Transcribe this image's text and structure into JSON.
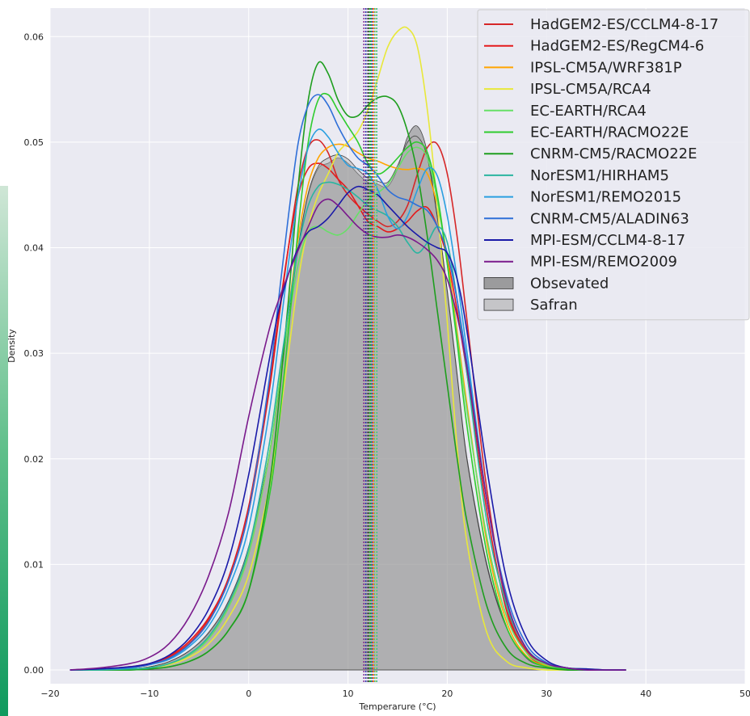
{
  "chart_data": {
    "type": "area",
    "title": "",
    "xlabel": "Temperarure (°C)",
    "ylabel": "Density",
    "xlim": [
      -20,
      50
    ],
    "ylim": [
      -0.0013,
      0.0627
    ],
    "xticks": [
      -20,
      -10,
      0,
      10,
      20,
      30,
      40,
      50
    ],
    "yticks": [
      0.0,
      0.01,
      0.02,
      0.03,
      0.04,
      0.05,
      0.06
    ],
    "grid": true,
    "legend_position": "top-right",
    "plot_background": "#eaeaf2",
    "x": [
      -18,
      -15,
      -12,
      -10,
      -8,
      -6,
      -4,
      -2,
      0,
      2,
      3,
      4,
      5,
      6,
      7,
      8,
      9,
      10,
      11,
      12,
      13,
      14,
      15,
      16,
      17,
      18,
      19,
      20,
      21,
      22,
      24,
      26,
      28,
      30,
      32,
      34,
      36,
      38
    ],
    "filled_series": [
      {
        "name": "Obsevated",
        "color": "#808080",
        "opacity": 0.55,
        "values": [
          0,
          0,
          0.0001,
          0.0003,
          0.0008,
          0.0018,
          0.0035,
          0.0065,
          0.0115,
          0.02,
          0.026,
          0.033,
          0.04,
          0.045,
          0.0475,
          0.048,
          0.0485,
          0.048,
          0.047,
          0.0462,
          0.046,
          0.0458,
          0.0475,
          0.0505,
          0.0515,
          0.049,
          0.043,
          0.036,
          0.028,
          0.02,
          0.01,
          0.004,
          0.0012,
          0.0003,
          0.0001,
          0,
          0,
          0
        ]
      },
      {
        "name": "Safran",
        "color": "#b0b0b0",
        "opacity": 0.45,
        "values": [
          0,
          0,
          0.0001,
          0.0003,
          0.0008,
          0.0018,
          0.0036,
          0.0066,
          0.0117,
          0.0202,
          0.0262,
          0.0332,
          0.0402,
          0.0452,
          0.0477,
          0.0485,
          0.0488,
          0.0484,
          0.0474,
          0.0466,
          0.0463,
          0.0462,
          0.0478,
          0.05,
          0.0505,
          0.0485,
          0.0428,
          0.0358,
          0.0278,
          0.0198,
          0.0098,
          0.0039,
          0.0011,
          0.0003,
          0.0001,
          0,
          0,
          0
        ]
      }
    ],
    "series": [
      {
        "name": "HadGEM2-ES/CCLM4-8-17",
        "color": "#d62728",
        "values": [
          0,
          0.0001,
          0.0002,
          0.0005,
          0.0012,
          0.0025,
          0.0048,
          0.0085,
          0.015,
          0.026,
          0.033,
          0.04,
          0.046,
          0.0495,
          0.0502,
          0.049,
          0.0465,
          0.045,
          0.044,
          0.0432,
          0.0425,
          0.042,
          0.0425,
          0.044,
          0.047,
          0.0495,
          0.0498,
          0.047,
          0.041,
          0.033,
          0.017,
          0.006,
          0.0018,
          0.0005,
          0.0001,
          0,
          0,
          0
        ]
      },
      {
        "name": "HadGEM2-ES/RegCM4-6",
        "color": "#e41a1c",
        "values": [
          0,
          0.0001,
          0.0003,
          0.0006,
          0.0013,
          0.0027,
          0.005,
          0.0088,
          0.0155,
          0.0265,
          0.0335,
          0.04,
          0.045,
          0.0475,
          0.048,
          0.0475,
          0.0465,
          0.0455,
          0.044,
          0.0425,
          0.042,
          0.0415,
          0.0418,
          0.0425,
          0.0435,
          0.0438,
          0.042,
          0.039,
          0.034,
          0.028,
          0.015,
          0.0055,
          0.0016,
          0.0004,
          0.0001,
          0,
          0,
          0
        ]
      },
      {
        "name": "IPSL-CM5A/WRF381P",
        "color": "#ffa500",
        "values": [
          0,
          0,
          0.0001,
          0.0002,
          0.0006,
          0.0014,
          0.003,
          0.006,
          0.011,
          0.02,
          0.0265,
          0.034,
          0.041,
          0.046,
          0.0485,
          0.0495,
          0.0498,
          0.0496,
          0.049,
          0.0485,
          0.0482,
          0.0478,
          0.0475,
          0.0474,
          0.0475,
          0.047,
          0.044,
          0.039,
          0.032,
          0.025,
          0.012,
          0.0045,
          0.0013,
          0.0004,
          0.0001,
          0,
          0,
          0
        ]
      },
      {
        "name": "IPSL-CM5A/RCA4",
        "color": "#e8e83a",
        "values": [
          0,
          0,
          0.0001,
          0.0002,
          0.0005,
          0.0012,
          0.0025,
          0.005,
          0.009,
          0.017,
          0.023,
          0.03,
          0.037,
          0.042,
          0.045,
          0.047,
          0.049,
          0.05,
          0.051,
          0.053,
          0.056,
          0.059,
          0.0605,
          0.0608,
          0.059,
          0.053,
          0.044,
          0.033,
          0.021,
          0.012,
          0.0035,
          0.0008,
          0.0002,
          0,
          0,
          0,
          0,
          0
        ]
      },
      {
        "name": "EC-EARTH/RCA4",
        "color": "#66e066",
        "values": [
          0,
          0,
          0.0001,
          0.0002,
          0.0006,
          0.0014,
          0.003,
          0.006,
          0.011,
          0.02,
          0.0265,
          0.033,
          0.0385,
          0.0415,
          0.042,
          0.0415,
          0.0412,
          0.0418,
          0.0432,
          0.0445,
          0.0452,
          0.046,
          0.0475,
          0.049,
          0.0495,
          0.0485,
          0.0445,
          0.0385,
          0.0315,
          0.0245,
          0.0125,
          0.005,
          0.0016,
          0.0005,
          0.0001,
          0,
          0,
          0
        ]
      },
      {
        "name": "EC-EARTH/RACMO22E",
        "color": "#2ecc2e",
        "values": [
          0,
          0,
          0,
          0.0001,
          0.0003,
          0.0008,
          0.0018,
          0.0038,
          0.0075,
          0.016,
          0.023,
          0.032,
          0.042,
          0.05,
          0.054,
          0.0545,
          0.053,
          0.0515,
          0.05,
          0.048,
          0.047,
          0.0475,
          0.0485,
          0.0495,
          0.05,
          0.049,
          0.045,
          0.0385,
          0.031,
          0.023,
          0.011,
          0.004,
          0.0012,
          0.0003,
          0.0001,
          0,
          0,
          0
        ]
      },
      {
        "name": "CNRM-CM5/RACMO22E",
        "color": "#1e9e1e",
        "values": [
          0,
          0,
          0,
          0.0001,
          0.0003,
          0.0008,
          0.0018,
          0.0038,
          0.0075,
          0.017,
          0.025,
          0.035,
          0.046,
          0.054,
          0.0575,
          0.0565,
          0.054,
          0.0525,
          0.0525,
          0.0535,
          0.0542,
          0.0543,
          0.0535,
          0.051,
          0.047,
          0.041,
          0.034,
          0.027,
          0.02,
          0.014,
          0.006,
          0.002,
          0.0006,
          0.0002,
          0,
          0,
          0,
          0
        ]
      },
      {
        "name": "NorESM1/HIRHAM5",
        "color": "#2ab5a0",
        "values": [
          0,
          0,
          0.0001,
          0.0002,
          0.0006,
          0.0015,
          0.0032,
          0.0063,
          0.0115,
          0.021,
          0.0275,
          0.034,
          0.04,
          0.044,
          0.0458,
          0.0462,
          0.046,
          0.0455,
          0.0448,
          0.044,
          0.0435,
          0.043,
          0.042,
          0.0405,
          0.0395,
          0.0405,
          0.042,
          0.0405,
          0.035,
          0.028,
          0.014,
          0.006,
          0.002,
          0.0006,
          0.0002,
          0.0001,
          0,
          0
        ]
      },
      {
        "name": "NorESM1/REMO2015",
        "color": "#2a9fe0",
        "values": [
          0,
          0.0001,
          0.0002,
          0.0005,
          0.001,
          0.0022,
          0.0042,
          0.0078,
          0.0135,
          0.024,
          0.031,
          0.0385,
          0.045,
          0.0495,
          0.0512,
          0.0505,
          0.049,
          0.0478,
          0.0475,
          0.047,
          0.0455,
          0.043,
          0.0418,
          0.043,
          0.0455,
          0.0475,
          0.0468,
          0.043,
          0.037,
          0.03,
          0.016,
          0.0065,
          0.002,
          0.0006,
          0.0002,
          0,
          0,
          0
        ]
      },
      {
        "name": "CNRM-CM5/ALADIN63",
        "color": "#2e6fd8",
        "values": [
          0,
          0.0001,
          0.0002,
          0.0005,
          0.0011,
          0.0024,
          0.0046,
          0.0085,
          0.015,
          0.027,
          0.035,
          0.043,
          0.05,
          0.0535,
          0.0545,
          0.0535,
          0.0515,
          0.0498,
          0.0485,
          0.0478,
          0.0468,
          0.0455,
          0.0448,
          0.0445,
          0.044,
          0.0435,
          0.042,
          0.0395,
          0.035,
          0.029,
          0.016,
          0.007,
          0.0024,
          0.0007,
          0.0002,
          0,
          0,
          0
        ]
      },
      {
        "name": "MPI-ESM/CCLM4-8-17",
        "color": "#1a1aa8",
        "values": [
          0,
          0.0001,
          0.0003,
          0.0006,
          0.0014,
          0.003,
          0.0058,
          0.0105,
          0.0185,
          0.029,
          0.034,
          0.0375,
          0.04,
          0.0415,
          0.042,
          0.0428,
          0.044,
          0.0452,
          0.0458,
          0.0455,
          0.045,
          0.044,
          0.043,
          0.042,
          0.0412,
          0.0405,
          0.04,
          0.0395,
          0.037,
          0.032,
          0.019,
          0.0085,
          0.003,
          0.0009,
          0.0002,
          0.0001,
          0,
          0
        ]
      },
      {
        "name": "MPI-ESM/REMO2009",
        "color": "#7a1a8c",
        "values": [
          0,
          0.0002,
          0.0006,
          0.0012,
          0.0025,
          0.005,
          0.009,
          0.015,
          0.024,
          0.032,
          0.035,
          0.0375,
          0.0398,
          0.042,
          0.044,
          0.0446,
          0.044,
          0.043,
          0.042,
          0.0413,
          0.041,
          0.041,
          0.0412,
          0.041,
          0.0405,
          0.0398,
          0.0388,
          0.037,
          0.0335,
          0.0285,
          0.016,
          0.0065,
          0.002,
          0.0006,
          0.0002,
          0,
          0,
          0
        ]
      }
    ],
    "mean_lines": [
      {
        "x": 11.6,
        "color": "#7a1a8c"
      },
      {
        "x": 11.8,
        "color": "#1a1aa8"
      },
      {
        "x": 12.0,
        "color": "#333333"
      },
      {
        "x": 12.1,
        "color": "#555555"
      },
      {
        "x": 12.2,
        "color": "#2ecc2e"
      },
      {
        "x": 12.3,
        "color": "#1e9e1e"
      },
      {
        "x": 12.4,
        "color": "#2e6fd8"
      },
      {
        "x": 12.5,
        "color": "#d62728"
      },
      {
        "x": 12.6,
        "color": "#ffa500"
      },
      {
        "x": 12.7,
        "color": "#2a9fe0"
      },
      {
        "x": 12.8,
        "color": "#e8e83a"
      },
      {
        "x": 12.9,
        "color": "#2ab5a0"
      }
    ]
  }
}
